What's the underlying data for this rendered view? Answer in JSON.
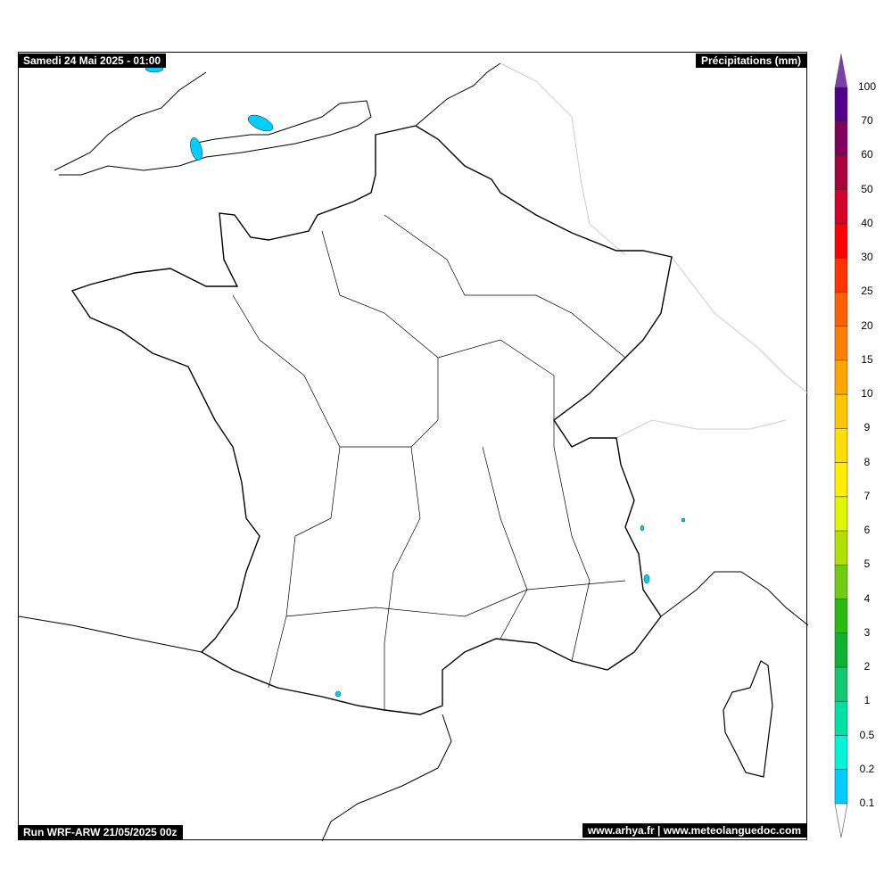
{
  "header": {
    "datetime": "Samedi 24 Mai 2025 - 01:00",
    "variable": "Précipitations (mm)"
  },
  "footer": {
    "run": "Run WRF-ARW 21/05/2025 00z",
    "credits": "www.arhya.fr | www.meteolanguedoc.com"
  },
  "colorbar": {
    "labels": [
      "100",
      "70",
      "60",
      "50",
      "40",
      "30",
      "25",
      "20",
      "15",
      "10",
      "9",
      "8",
      "7",
      "6",
      "5",
      "4",
      "3",
      "2",
      "1",
      "0.5",
      "0.2",
      "0.1"
    ],
    "colors": [
      "#52008a",
      "#7f005f",
      "#a8003c",
      "#d4002a",
      "#ff0000",
      "#ff3300",
      "#ff6000",
      "#ff8000",
      "#ffa500",
      "#ffc400",
      "#ffdd00",
      "#ffee00",
      "#e0f500",
      "#b0e000",
      "#70cc10",
      "#2aba10",
      "#10b030",
      "#10c870",
      "#00e0a0",
      "#00f5d8",
      "#00ccff"
    ],
    "over_color": "#7a3fa8",
    "under_color": "#ffffff"
  },
  "precip_color": "#00ccff"
}
